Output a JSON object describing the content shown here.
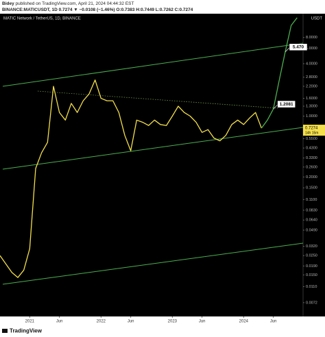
{
  "header": {
    "author": "Bidey",
    "published": "published on TradingView.com, April 21, 2024 04:44:32 EST",
    "symbol_line": "BINANCE:MATICUSDT, 1D  0.7274 ▼ −0.0108 (−1.46%) O:0.7383 H:0.7449 L:0.7262 C:0.7274"
  },
  "footer": {
    "brand": "TradingView"
  },
  "chart_data": {
    "type": "line",
    "title": "MATIC Network / TetherUS, 1D, BINANCE",
    "currency": "USDT",
    "log_scale": true,
    "x": [
      "2020-08",
      "2020-09",
      "2020-10",
      "2020-11",
      "2020-12",
      "2021-01",
      "2021-02",
      "2021-03",
      "2021-04",
      "2021-05",
      "2021-06",
      "2021-07",
      "2021-08",
      "2021-09",
      "2021-10",
      "2021-11",
      "2021-12",
      "2022-01",
      "2022-02",
      "2022-03",
      "2022-04",
      "2022-05",
      "2022-06",
      "2022-07",
      "2022-08",
      "2022-09",
      "2022-10",
      "2022-11",
      "2022-12",
      "2023-01",
      "2023-02",
      "2023-03",
      "2023-04",
      "2023-05",
      "2023-06",
      "2023-07",
      "2023-08",
      "2023-09",
      "2023-10",
      "2023-11",
      "2023-12",
      "2024-01",
      "2024-02",
      "2024-03",
      "2024-04",
      "2024-05",
      "2024-06",
      "2024-07",
      "2024-08",
      "2024-09",
      "2024-10"
    ],
    "series": [
      {
        "color": "#f5e04b",
        "values": [
          0.025,
          0.02,
          0.016,
          0.014,
          0.017,
          0.03,
          0.25,
          0.38,
          0.5,
          2.2,
          1.1,
          0.9,
          1.4,
          1.1,
          1.5,
          1.8,
          2.6,
          1.6,
          1.5,
          1.5,
          1.1,
          0.6,
          0.4,
          0.9,
          0.85,
          0.78,
          0.9,
          0.8,
          0.78,
          1.0,
          1.3,
          1.1,
          1.0,
          0.85,
          0.65,
          0.7,
          0.56,
          0.52,
          0.6,
          0.8,
          0.9,
          0.8,
          0.95,
          1.1,
          0.7274,
          null,
          null,
          null,
          null,
          null,
          null
        ]
      },
      {
        "color": "#4caf50",
        "values": [
          null,
          null,
          null,
          null,
          null,
          null,
          null,
          null,
          null,
          null,
          null,
          null,
          null,
          null,
          null,
          null,
          null,
          null,
          null,
          null,
          null,
          null,
          null,
          null,
          null,
          null,
          null,
          null,
          null,
          null,
          null,
          null,
          null,
          null,
          null,
          null,
          null,
          null,
          null,
          null,
          null,
          null,
          null,
          null,
          0.7274,
          0.9,
          1.2081,
          2.6,
          5.47,
          11,
          13.5
        ]
      }
    ],
    "annotations": [
      {
        "x": "2024-06",
        "y": 1.2081,
        "text": "1.2081"
      },
      {
        "x": "2024-08",
        "y": 5.47,
        "text": "5.470"
      }
    ],
    "last_price": {
      "value": 0.7274,
      "label": "0.7274",
      "countdown": "14h 15m"
    },
    "xlim": [
      "2020-08",
      "2024-11"
    ],
    "xticks": [
      {
        "value": "2021-01",
        "label": "2021"
      },
      {
        "value": "2021-06",
        "label": "Jun"
      },
      {
        "value": "2022-01",
        "label": "2022"
      },
      {
        "value": "2022-06",
        "label": "Jun"
      },
      {
        "value": "2023-01",
        "label": "2023"
      },
      {
        "value": "2023-06",
        "label": "Jun"
      },
      {
        "value": "2024-01",
        "label": "2024"
      },
      {
        "value": "2024-06",
        "label": "Jun"
      }
    ],
    "ylim": [
      0.005,
      15
    ],
    "yticks": [
      {
        "value": 8,
        "label": "8.0000"
      },
      {
        "value": 6,
        "label": "6.0000"
      },
      {
        "value": 4,
        "label": "4.0000"
      },
      {
        "value": 2.8,
        "label": "2.8000"
      },
      {
        "value": 2.2,
        "label": "2.2000"
      },
      {
        "value": 1.6,
        "label": "1.6000"
      },
      {
        "value": 1.3,
        "label": "1.3000"
      },
      {
        "value": 1,
        "label": "1.0000"
      },
      {
        "value": 0.55,
        "label": "0.5500"
      },
      {
        "value": 0.43,
        "label": "0.4300"
      },
      {
        "value": 0.33,
        "label": "0.3300"
      },
      {
        "value": 0.26,
        "label": "0.2600"
      },
      {
        "value": 0.2,
        "label": "0.2000"
      },
      {
        "value": 0.15,
        "label": "0.1500"
      },
      {
        "value": 0.11,
        "label": "0.1100"
      },
      {
        "value": 0.083,
        "label": "0.0830"
      },
      {
        "value": 0.064,
        "label": "0.0640"
      },
      {
        "value": 0.049,
        "label": "0.0490"
      },
      {
        "value": 0.032,
        "label": "0.0320"
      },
      {
        "value": 0.025,
        "label": "0.0250"
      },
      {
        "value": 0.019,
        "label": "0.0190"
      },
      {
        "value": 0.015,
        "label": "0.0150"
      },
      {
        "value": 0.011,
        "label": "0.0110"
      },
      {
        "value": 0.0072,
        "label": "0.0072"
      }
    ],
    "grid": false
  }
}
